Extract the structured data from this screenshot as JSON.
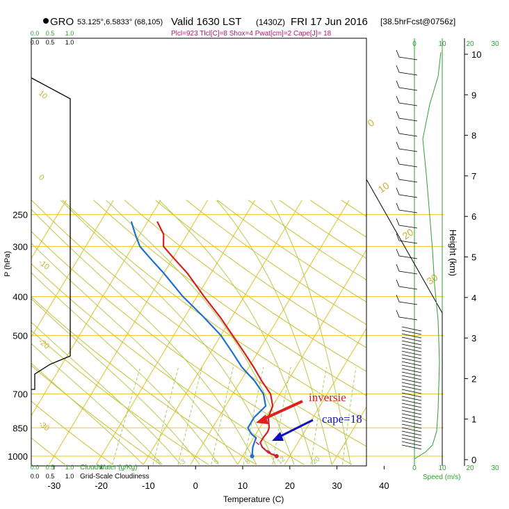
{
  "header": {
    "station": "GRO",
    "coords": "53.125°,6.5833° (68,105)",
    "valid": "Valid 1630 LST",
    "utc": "(1430Z)",
    "date": "FRI 17 Jun 2016",
    "forecast": "[38.5hrFcst@0756z]",
    "indices": "Plcl=923 Tlcl[C]=8 Shox=4 Pwat[cm]=2 Cape[J]= 18"
  },
  "labels": {
    "p_axis": "P (hPa)",
    "t_axis": "Temperature (C)",
    "h_axis": "Height (km)",
    "speed_axis": "Speed (m/s)",
    "cloudwater_label": "CloudWater (g/Kg)",
    "cloudiness_label": "Grid-Scale Cloudiness"
  },
  "annotations": {
    "inversion": "inversie",
    "cape": "cape=18"
  },
  "colors": {
    "temperature": "#d42020",
    "dewpoint": "#1f6fd1",
    "parcel": "#b01a6a",
    "grid": "#e0c020",
    "isobar": "#e8c820",
    "dry_adiabat": "#c8c030",
    "moist_adiabat": "#b8c850",
    "mixing_ratio": "#a8c860",
    "cloud_axis": "#2ea02e",
    "speed": "#2ea02e",
    "inversion_arrow": "#e02020",
    "cape_arrow": "#1010c0"
  },
  "chart_data": {
    "type": "line",
    "title": "Valid 1630 LST (1430Z) FRI 17 Jun 2016",
    "xlabel": "Temperature (C)",
    "ylabel": "P (hPa)",
    "xlim": [
      -35,
      45
    ],
    "ylim": [
      1050,
      250
    ],
    "pressure_ticks": [
      250,
      300,
      400,
      500,
      700,
      850,
      1000
    ],
    "temperature_ticks": [
      -30,
      -20,
      -10,
      0,
      10,
      20,
      30,
      40
    ],
    "height_ticks": [
      0,
      1,
      2,
      3,
      4,
      5,
      6,
      7,
      8,
      9,
      10
    ],
    "cloud_ticks": [
      "0.0",
      "0.5",
      "1.0"
    ],
    "cloudiness_ticks": [
      "0.0",
      "0.5",
      "1.0"
    ],
    "speed_ticks": [
      "0",
      "10",
      "20",
      "30"
    ],
    "dry_adiabat_labels": [
      "-10",
      "0",
      "10",
      "20",
      "30"
    ],
    "moist_adiabat_labels": [
      "0",
      "10",
      "20",
      "30"
    ],
    "isotherm_labels_left": [
      "10",
      "0",
      "-10",
      "-20",
      "-30"
    ],
    "mixing_ratio_labels": [
      "2",
      "3",
      "5",
      "8",
      "12",
      "20"
    ],
    "series": [
      {
        "name": "Temperature",
        "points": [
          {
            "p": 1000,
            "t": 17.2
          },
          {
            "p": 980,
            "t": 15.0
          },
          {
            "p": 950,
            "t": 13.0
          },
          {
            "p": 925,
            "t": 12.0
          },
          {
            "p": 900,
            "t": 12.0
          },
          {
            "p": 870,
            "t": 12.2
          },
          {
            "p": 850,
            "t": 12.0
          },
          {
            "p": 800,
            "t": 10.5
          },
          {
            "p": 750,
            "t": 10.0
          },
          {
            "p": 700,
            "t": 8.0
          },
          {
            "p": 650,
            "t": 4.5
          },
          {
            "p": 600,
            "t": 1.0
          },
          {
            "p": 550,
            "t": -3.0
          },
          {
            "p": 500,
            "t": -7.5
          },
          {
            "p": 450,
            "t": -12.5
          },
          {
            "p": 400,
            "t": -18.5
          },
          {
            "p": 350,
            "t": -25.0
          },
          {
            "p": 320,
            "t": -30.0
          },
          {
            "p": 300,
            "t": -33.5
          },
          {
            "p": 280,
            "t": -35.0
          },
          {
            "p": 260,
            "t": -38.0
          }
        ]
      },
      {
        "name": "Dewpoint",
        "points": [
          {
            "p": 1000,
            "t": 12.0
          },
          {
            "p": 975,
            "t": 11.5
          },
          {
            "p": 950,
            "t": 11.0
          },
          {
            "p": 900,
            "t": 10.5
          },
          {
            "p": 880,
            "t": 9.0
          },
          {
            "p": 850,
            "t": 7.5
          },
          {
            "p": 800,
            "t": 7.5
          },
          {
            "p": 750,
            "t": 8.5
          },
          {
            "p": 700,
            "t": 6.5
          },
          {
            "p": 650,
            "t": 3.0
          },
          {
            "p": 600,
            "t": -1.5
          },
          {
            "p": 550,
            "t": -5.5
          },
          {
            "p": 500,
            "t": -10.0
          },
          {
            "p": 450,
            "t": -16.0
          },
          {
            "p": 400,
            "t": -23.0
          },
          {
            "p": 350,
            "t": -30.0
          },
          {
            "p": 320,
            "t": -35.0
          },
          {
            "p": 300,
            "t": -38.5
          },
          {
            "p": 280,
            "t": -41.0
          },
          {
            "p": 260,
            "t": -43.5
          }
        ]
      }
    ]
  }
}
